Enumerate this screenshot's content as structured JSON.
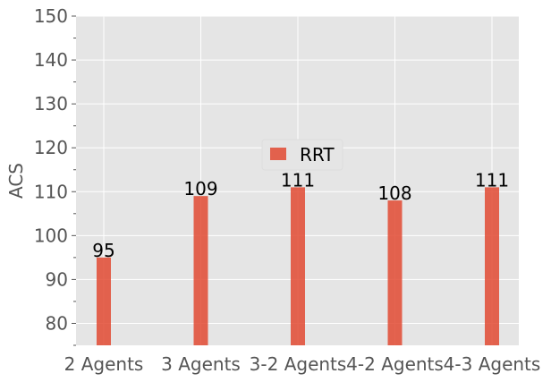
{
  "chart_data": {
    "type": "bar",
    "categories": [
      "2 Agents",
      "3 Agents",
      "3-2 Agents",
      "4-2 Agents",
      "4-3 Agents"
    ],
    "series": [
      {
        "name": "RRT",
        "values": [
          95,
          109,
          111,
          108,
          111
        ],
        "color": "#E24A33"
      }
    ],
    "data_labels": [
      "95",
      "109",
      "111",
      "108",
      "111"
    ],
    "xlabel": "",
    "ylabel": "ACS",
    "ylim": [
      75,
      150
    ],
    "yticks": [
      80,
      90,
      100,
      110,
      120,
      130,
      140,
      150
    ],
    "grid": true,
    "legend_position": "center",
    "background": "#E5E5E5",
    "grid_color": "#FFFFFF"
  }
}
